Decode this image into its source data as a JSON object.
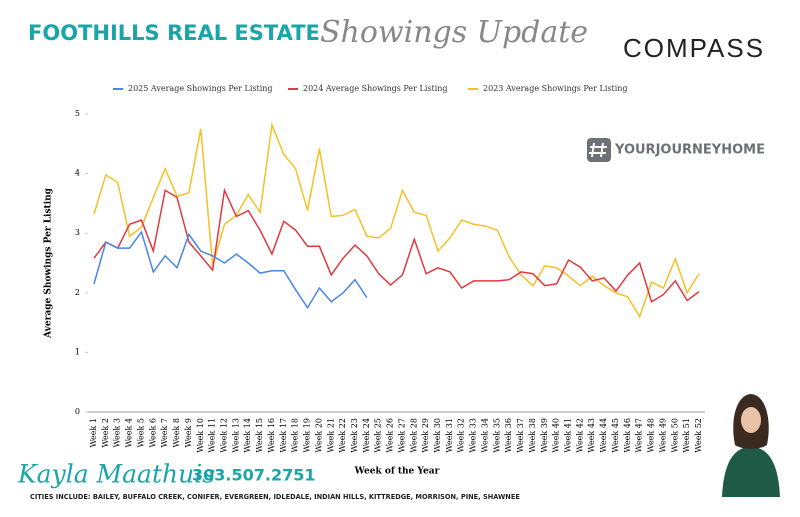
{
  "header": {
    "brand": "FOOTHILLS REAL ESTATE",
    "subtitle": "Showings Update",
    "logo": "COMPASS",
    "hashtag": "YOURJOURNEYHOME"
  },
  "footer": {
    "name": "Kayla Maathuis",
    "phone": "303.507.2751",
    "cities": "CITIES INCLUDE: BAILEY, BUFFALO CREEK, CONIFER, EVERGREEN, IDLEDALE, INDIAN HILLS, KITTREDGE, MORRISON, PINE, SHAWNEE"
  },
  "chart_data": {
    "type": "line",
    "x_label": "Week of the Year",
    "y_label": "Average Showings Per Listing",
    "categories": [
      "Week 1",
      "Week 2",
      "Week 3",
      "Week 4",
      "Week 5",
      "Week 6",
      "Week 7",
      "Week 8",
      "Week 9",
      "Week 10",
      "Week 11",
      "Week 12",
      "Week 13",
      "Week 14",
      "Week 15",
      "Week 16",
      "Week 17",
      "Week 18",
      "Week 19",
      "Week 20",
      "Week 21",
      "Week 22",
      "Week 23",
      "Week 24",
      "Week 25",
      "Week 26",
      "Week 27",
      "Week 28",
      "Week 29",
      "Week 30",
      "Week 31",
      "Week 32",
      "Week 33",
      "Week 34",
      "Week 35",
      "Week 36",
      "Week 37",
      "Week 38",
      "Week 39",
      "Week 40",
      "Week 41",
      "Week 42",
      "Week 43",
      "Week 44",
      "Week 45",
      "Week 46",
      "Week 47",
      "Week 48",
      "Week 49",
      "Week 50",
      "Week 51",
      "Week 52"
    ],
    "series": [
      {
        "name": "2025 Average Showings Per Listing",
        "color": "#4a86e8",
        "values": [
          2.15,
          2.85,
          2.75,
          2.75,
          3.02,
          2.35,
          2.62,
          2.42,
          2.98,
          2.7,
          2.62,
          2.5,
          2.65,
          2.5,
          2.33,
          2.37,
          2.37,
          2.05,
          1.75,
          2.08,
          1.85,
          2.0,
          2.22,
          1.92,
          null,
          null,
          null,
          null,
          null,
          null,
          null,
          null,
          null,
          null,
          null,
          null,
          null,
          null,
          null,
          null,
          null,
          null,
          null,
          null,
          null,
          null,
          null,
          null,
          null,
          null,
          null,
          null
        ]
      },
      {
        "name": "2024 Average Showings Per Listing",
        "color": "#e0393e",
        "values": [
          2.58,
          2.85,
          2.75,
          3.15,
          3.22,
          2.7,
          3.72,
          3.6,
          2.85,
          2.62,
          2.38,
          3.72,
          3.28,
          3.38,
          3.05,
          2.65,
          3.2,
          3.05,
          2.78,
          2.78,
          2.3,
          2.58,
          2.8,
          2.62,
          2.32,
          2.13,
          2.3,
          2.9,
          2.32,
          2.42,
          2.35,
          2.08,
          2.2,
          2.2,
          2.2,
          2.22,
          2.35,
          2.32,
          2.12,
          2.15,
          2.55,
          2.43,
          2.2,
          2.25,
          2.03,
          2.3,
          2.5,
          1.85,
          1.97,
          2.2,
          1.87,
          2.02
        ]
      },
      {
        "name": "2023 Average Showings Per Listing",
        "color": "#f6c026",
        "values": [
          3.32,
          3.98,
          3.85,
          2.95,
          3.1,
          3.6,
          4.08,
          3.62,
          3.68,
          4.75,
          2.45,
          3.15,
          3.3,
          3.65,
          3.35,
          4.82,
          4.32,
          4.08,
          3.38,
          4.42,
          3.28,
          3.3,
          3.4,
          2.95,
          2.92,
          3.08,
          3.72,
          3.35,
          3.3,
          2.7,
          2.92,
          3.22,
          3.15,
          3.12,
          3.05,
          2.6,
          2.3,
          2.12,
          2.45,
          2.42,
          2.28,
          2.12,
          2.28,
          2.12,
          2.0,
          1.93,
          1.6,
          2.18,
          2.08,
          2.57,
          2.0,
          2.32
        ]
      }
    ],
    "ylim": [
      0,
      5
    ],
    "yticks": [
      0,
      1,
      2,
      3,
      4,
      5
    ]
  }
}
